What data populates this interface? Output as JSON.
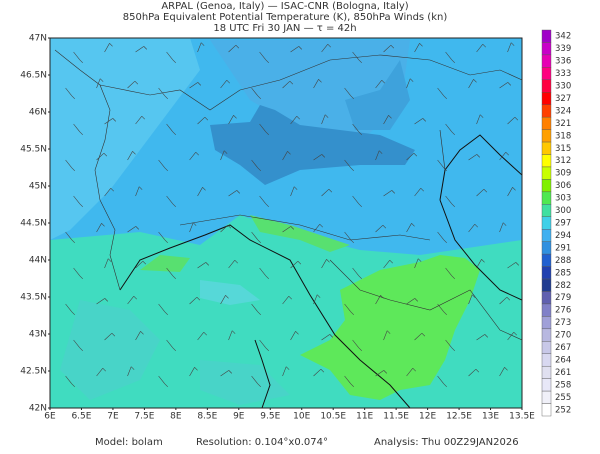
{
  "header": {
    "lines": [
      "ARPAL (Genoa, Italy)  —  ISAC-CNR (Bologna, Italy)",
      "850hPa Equivalent Potential Temperature (K), 850hPa Winds (kn)",
      "18 UTC Fri 30 JAN  —  τ = 42h"
    ]
  },
  "map": {
    "lat_labels": [
      "47N",
      "46.5N",
      "46N",
      "45.5N",
      "45N",
      "44.5N",
      "44N",
      "43.5N",
      "43N",
      "42.5N",
      "42N"
    ],
    "lon_labels": [
      "6E",
      "6.5E",
      "7E",
      "7.5E",
      "8E",
      "8.5E",
      "9E",
      "9.5E",
      "10E",
      "10.5E",
      "11E",
      "11.5E",
      "12E",
      "12.5E",
      "13E",
      "13.5E"
    ]
  },
  "colorbar": {
    "levels": [
      342,
      339,
      336,
      333,
      330,
      327,
      324,
      321,
      318,
      315,
      312,
      309,
      306,
      303,
      300,
      297,
      294,
      291,
      288,
      285,
      282,
      279,
      276,
      273,
      270,
      267,
      264,
      261,
      258,
      255,
      252
    ],
    "colors": [
      "#a000c8",
      "#c800c8",
      "#e600b4",
      "#ff0080",
      "#ff0040",
      "#ff0000",
      "#ff4000",
      "#ff8000",
      "#ffa000",
      "#ffc800",
      "#ffff00",
      "#c8ff00",
      "#80f000",
      "#50e850",
      "#40e0a0",
      "#40d0e8",
      "#40b0f0",
      "#3090e0",
      "#2060d0",
      "#2040b0",
      "#203c90",
      "#6060b0",
      "#8080c8",
      "#a0a0d8",
      "#b8b8e0",
      "#c8c8e8",
      "#d8d8f0",
      "#e0e0f0",
      "#e8e8f8",
      "#f0f0f8",
      "#ffffff"
    ]
  },
  "footer": {
    "model": "Model: bolam",
    "resolution": "Resolution: 0.104°x0.074°",
    "analysis": "Analysis: Thu 00Z29JAN2026"
  }
}
